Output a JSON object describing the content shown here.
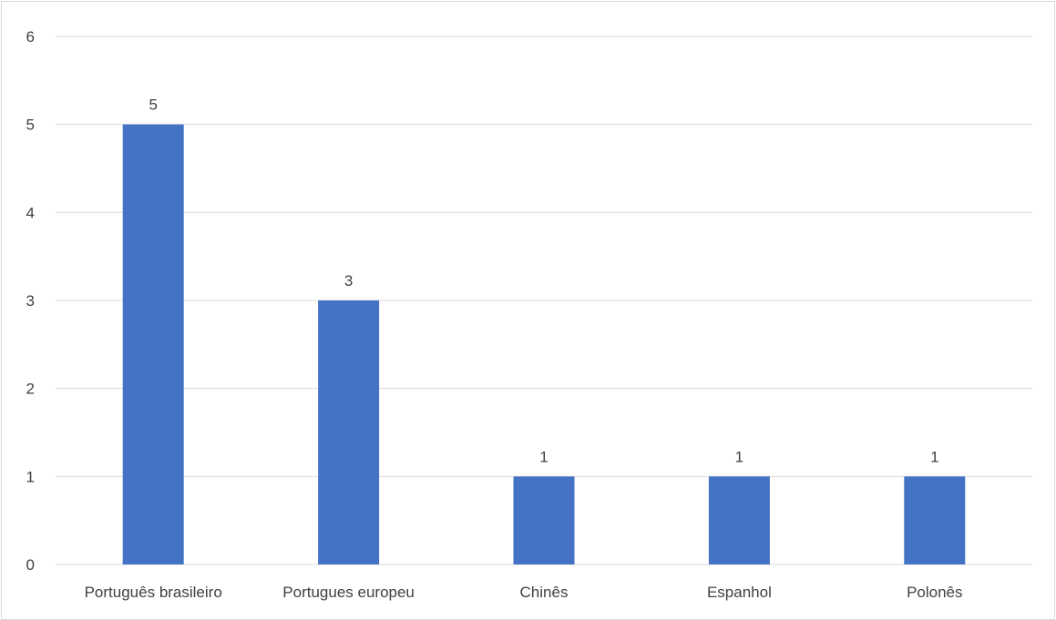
{
  "chart_data": {
    "type": "bar",
    "title": "",
    "xlabel": "",
    "ylabel": "",
    "categories": [
      "Português brasileiro",
      "Portugues europeu",
      "Chinês",
      "Espanhol",
      "Polonês"
    ],
    "values": [
      5,
      3,
      1,
      1,
      1
    ],
    "data_labels": [
      "5",
      "3",
      "1",
      "1",
      "1"
    ],
    "y_ticks": [
      "0",
      "1",
      "2",
      "3",
      "4",
      "5",
      "6"
    ],
    "ylim": [
      0,
      6
    ],
    "grid": true,
    "legend": "none",
    "bar_color": "#4472c4"
  }
}
